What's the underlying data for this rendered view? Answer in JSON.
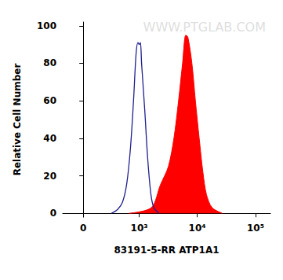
{
  "chart_data": {
    "type": "histogram",
    "watermark": "WWW.PTGLAB.COM",
    "x_label": "83191-5-RR ATP1A1",
    "y_label": "Relative Cell Number",
    "xlim": [
      -200,
      180000
    ],
    "xticks": [
      0,
      {
        "value": 1000,
        "label": "10³"
      },
      {
        "value": 10000,
        "label": "10⁴"
      },
      {
        "value": 100000,
        "label": "10⁵"
      }
    ],
    "ylim": [
      -2,
      102
    ],
    "yticks": [
      0,
      20,
      40,
      60,
      80,
      100
    ],
    "grid": false,
    "series": [
      {
        "type": "line",
        "color": "#1f1f8f",
        "x": [
          300,
          400,
          500,
          600,
          700,
          800,
          880,
          950,
          1000,
          1050,
          1100,
          1250,
          1400,
          1600,
          1800,
          2200
        ],
        "values": [
          0,
          2,
          6,
          16,
          35,
          62,
          85,
          91,
          90,
          91,
          80,
          55,
          30,
          10,
          3,
          0
        ]
      },
      {
        "type": "area",
        "color": "#ff0000",
        "x": [
          650,
          1620,
          2320,
          3200,
          3980,
          4780,
          5600,
          6350,
          6900,
          8100,
          9300,
          10800,
          12500,
          14400,
          18000,
          27000
        ],
        "values": [
          0,
          3,
          15,
          25,
          40,
          60,
          80,
          95,
          94,
          80,
          60,
          40,
          22,
          10,
          3,
          0
        ]
      }
    ]
  }
}
